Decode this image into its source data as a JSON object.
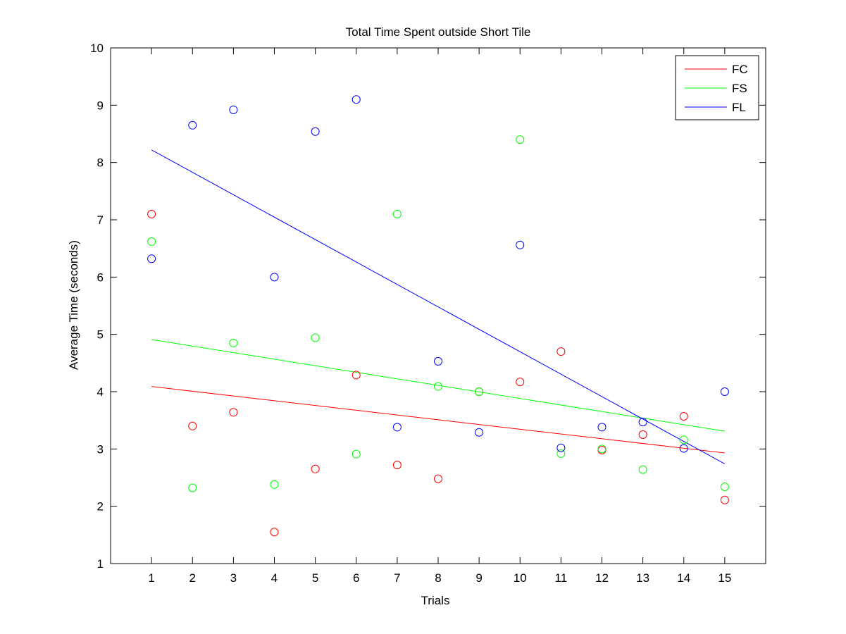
{
  "chart_data": {
    "type": "scatter",
    "title": "Total Time Spent outside Short Tile",
    "xlabel": "Trials",
    "ylabel": "Average Time (seconds)",
    "xlim": [
      0,
      16
    ],
    "ylim": [
      1,
      10
    ],
    "x_ticks": [
      1,
      2,
      3,
      4,
      5,
      6,
      7,
      8,
      9,
      10,
      11,
      12,
      13,
      14,
      15
    ],
    "y_ticks": [
      1,
      2,
      3,
      4,
      5,
      6,
      7,
      8,
      9,
      10
    ],
    "grid": false,
    "legend_position": "top-right",
    "x": [
      1,
      2,
      3,
      4,
      5,
      6,
      7,
      8,
      9,
      10,
      11,
      12,
      13,
      14,
      15
    ],
    "series": [
      {
        "name": "FC",
        "color": "#ff0000",
        "values": [
          7.1,
          3.4,
          3.64,
          1.55,
          2.65,
          4.29,
          2.72,
          2.48,
          4.0,
          4.17,
          4.7,
          2.98,
          3.25,
          3.57,
          2.11
        ],
        "fit": [
          4.09,
          2.93
        ]
      },
      {
        "name": "FS",
        "color": "#00ff00",
        "values": [
          6.62,
          2.32,
          4.85,
          2.38,
          4.94,
          2.91,
          7.1,
          4.09,
          4.0,
          8.4,
          2.92,
          3.0,
          2.64,
          3.16,
          2.34
        ],
        "fit": [
          4.91,
          3.31
        ]
      },
      {
        "name": "FL",
        "color": "#0000ff",
        "values": [
          6.32,
          8.65,
          8.92,
          6.0,
          8.54,
          9.1,
          3.38,
          4.53,
          3.29,
          6.56,
          3.02,
          3.38,
          3.47,
          3.01,
          4.0
        ],
        "fit": [
          8.22,
          2.74
        ]
      }
    ]
  }
}
